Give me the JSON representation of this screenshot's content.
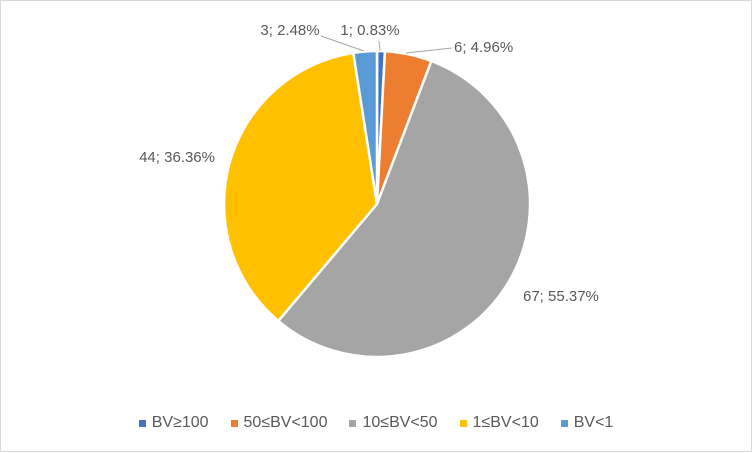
{
  "chart_data": {
    "type": "pie",
    "title": "",
    "categories": [
      "BV≥100",
      "50≤BV<100",
      "10≤BV<50",
      "1≤BV<10",
      "BV<1"
    ],
    "values": [
      1,
      6,
      67,
      44,
      3
    ],
    "percentages": [
      0.83,
      4.96,
      55.37,
      36.36,
      2.48
    ],
    "data_labels": [
      "1; 0.83%",
      "6; 4.96%",
      "67; 55.37%",
      "44; 36.36%",
      "3; 2.48%"
    ],
    "colors": [
      "#4472C4",
      "#ED7D31",
      "#A5A5A5",
      "#FFC000",
      "#5B9BD5"
    ],
    "legend_position": "bottom",
    "start_angle": "12 o'clock, clockwise"
  }
}
